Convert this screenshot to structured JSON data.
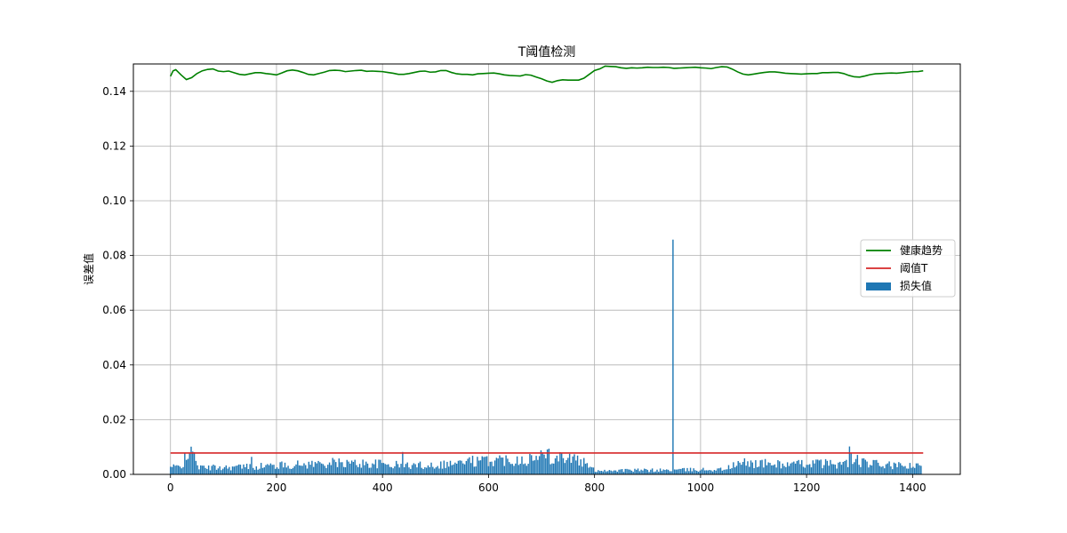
{
  "chart_data": {
    "type": "bar",
    "title": "T阈值检测",
    "xlabel": "",
    "ylabel": "误差值",
    "xlim": [
      -70,
      1490
    ],
    "ylim": [
      0.0,
      0.15
    ],
    "xticks": [
      0,
      200,
      400,
      600,
      800,
      1000,
      1200,
      1400
    ],
    "yticks": [
      0.0,
      0.02,
      0.04,
      0.06,
      0.08,
      0.1,
      0.12,
      0.14
    ],
    "grid": true,
    "legend_position": "center-right",
    "colors": {
      "trend": "#008000",
      "threshold": "#d62728",
      "loss": "#1f77b4"
    },
    "legend": [
      {
        "key": "trend",
        "label": "健康趋势"
      },
      {
        "key": "threshold",
        "label": "阈值T"
      },
      {
        "key": "loss",
        "label": "损失值"
      }
    ],
    "threshold": {
      "value": 0.0078,
      "x_range": [
        0,
        1420
      ]
    },
    "trend": {
      "x": [
        0,
        5,
        10,
        20,
        30,
        40,
        50,
        60,
        70,
        80,
        90,
        100,
        110,
        120,
        130,
        140,
        150,
        160,
        170,
        180,
        190,
        200,
        210,
        220,
        230,
        240,
        250,
        260,
        270,
        280,
        290,
        300,
        310,
        320,
        330,
        340,
        350,
        360,
        370,
        380,
        390,
        400,
        410,
        420,
        430,
        440,
        450,
        460,
        470,
        480,
        490,
        500,
        510,
        520,
        530,
        540,
        550,
        560,
        570,
        580,
        590,
        600,
        610,
        620,
        630,
        640,
        650,
        660,
        670,
        680,
        690,
        700,
        710,
        720,
        730,
        740,
        750,
        760,
        770,
        780,
        790,
        800,
        810,
        820,
        830,
        840,
        850,
        860,
        870,
        880,
        890,
        900,
        910,
        920,
        930,
        940,
        950,
        960,
        970,
        980,
        990,
        1000,
        1010,
        1020,
        1030,
        1040,
        1050,
        1060,
        1070,
        1080,
        1090,
        1100,
        1110,
        1120,
        1130,
        1140,
        1150,
        1160,
        1170,
        1180,
        1190,
        1200,
        1210,
        1220,
        1230,
        1240,
        1250,
        1260,
        1270,
        1280,
        1290,
        1300,
        1310,
        1320,
        1330,
        1340,
        1350,
        1360,
        1370,
        1380,
        1390,
        1400,
        1410,
        1420
      ],
      "y": [
        0.1455,
        0.1475,
        0.1479,
        0.146,
        0.1443,
        0.145,
        0.1465,
        0.1475,
        0.148,
        0.1482,
        0.1474,
        0.1472,
        0.1474,
        0.1468,
        0.1462,
        0.146,
        0.1464,
        0.1468,
        0.1468,
        0.1465,
        0.1463,
        0.146,
        0.1467,
        0.1475,
        0.1478,
        0.1475,
        0.1469,
        0.1462,
        0.146,
        0.1465,
        0.147,
        0.1476,
        0.1477,
        0.1476,
        0.1472,
        0.1474,
        0.1476,
        0.1477,
        0.1473,
        0.1474,
        0.1473,
        0.1472,
        0.1469,
        0.1466,
        0.1462,
        0.1462,
        0.1465,
        0.1469,
        0.1473,
        0.1474,
        0.147,
        0.1471,
        0.1476,
        0.1476,
        0.1469,
        0.1464,
        0.1462,
        0.1462,
        0.146,
        0.1464,
        0.1465,
        0.1466,
        0.1467,
        0.1464,
        0.146,
        0.1458,
        0.1457,
        0.1456,
        0.1461,
        0.1459,
        0.1452,
        0.1446,
        0.1438,
        0.1433,
        0.1439,
        0.1442,
        0.1441,
        0.1441,
        0.1441,
        0.1448,
        0.1462,
        0.1476,
        0.1482,
        0.1492,
        0.1491,
        0.149,
        0.1486,
        0.1484,
        0.1486,
        0.1485,
        0.1486,
        0.1488,
        0.1487,
        0.1487,
        0.1488,
        0.1487,
        0.1484,
        0.1485,
        0.1486,
        0.1487,
        0.1488,
        0.1486,
        0.1485,
        0.1483,
        0.1487,
        0.149,
        0.1489,
        0.1481,
        0.1471,
        0.1463,
        0.146,
        0.1463,
        0.1466,
        0.1469,
        0.1471,
        0.1471,
        0.1469,
        0.1466,
        0.1465,
        0.1464,
        0.1463,
        0.1464,
        0.1465,
        0.1465,
        0.1468,
        0.1468,
        0.1469,
        0.1469,
        0.1465,
        0.1458,
        0.1453,
        0.1452,
        0.1456,
        0.1461,
        0.1464,
        0.1465,
        0.1466,
        0.1467,
        0.1466,
        0.1468,
        0.147,
        0.1472,
        0.1472,
        0.1475
      ]
    },
    "loss": {
      "x_step": 3,
      "x_count": 473,
      "base_envelope": [
        [
          0,
          0.0026
        ],
        [
          20,
          0.0028
        ],
        [
          30,
          0.007
        ],
        [
          45,
          0.007
        ],
        [
          55,
          0.0024
        ],
        [
          140,
          0.0028
        ],
        [
          240,
          0.0035
        ],
        [
          300,
          0.0042
        ],
        [
          400,
          0.0038
        ],
        [
          440,
          0.0032
        ],
        [
          500,
          0.0035
        ],
        [
          560,
          0.0045
        ],
        [
          620,
          0.0053
        ],
        [
          690,
          0.0058
        ],
        [
          720,
          0.0068
        ],
        [
          750,
          0.0065
        ],
        [
          780,
          0.0042
        ],
        [
          800,
          0.0015
        ],
        [
          900,
          0.0015
        ],
        [
          1040,
          0.0018
        ],
        [
          1080,
          0.0042
        ],
        [
          1140,
          0.0038
        ],
        [
          1180,
          0.0035
        ],
        [
          1200,
          0.0042
        ],
        [
          1260,
          0.0038
        ],
        [
          1300,
          0.0043
        ],
        [
          1360,
          0.0032
        ],
        [
          1420,
          0.0028
        ]
      ],
      "spikes": [
        {
          "x": 27,
          "y": 0.0078
        },
        {
          "x": 36,
          "y": 0.0076
        },
        {
          "x": 153,
          "y": 0.0064
        },
        {
          "x": 438,
          "y": 0.0082
        },
        {
          "x": 570,
          "y": 0.0068
        },
        {
          "x": 699,
          "y": 0.0088
        },
        {
          "x": 711,
          "y": 0.0091
        },
        {
          "x": 714,
          "y": 0.0094
        },
        {
          "x": 948,
          "y": 0.0858
        },
        {
          "x": 1281,
          "y": 0.0102
        },
        {
          "x": 1284,
          "y": 0.0078
        },
        {
          "x": 1296,
          "y": 0.0071
        }
      ]
    }
  }
}
